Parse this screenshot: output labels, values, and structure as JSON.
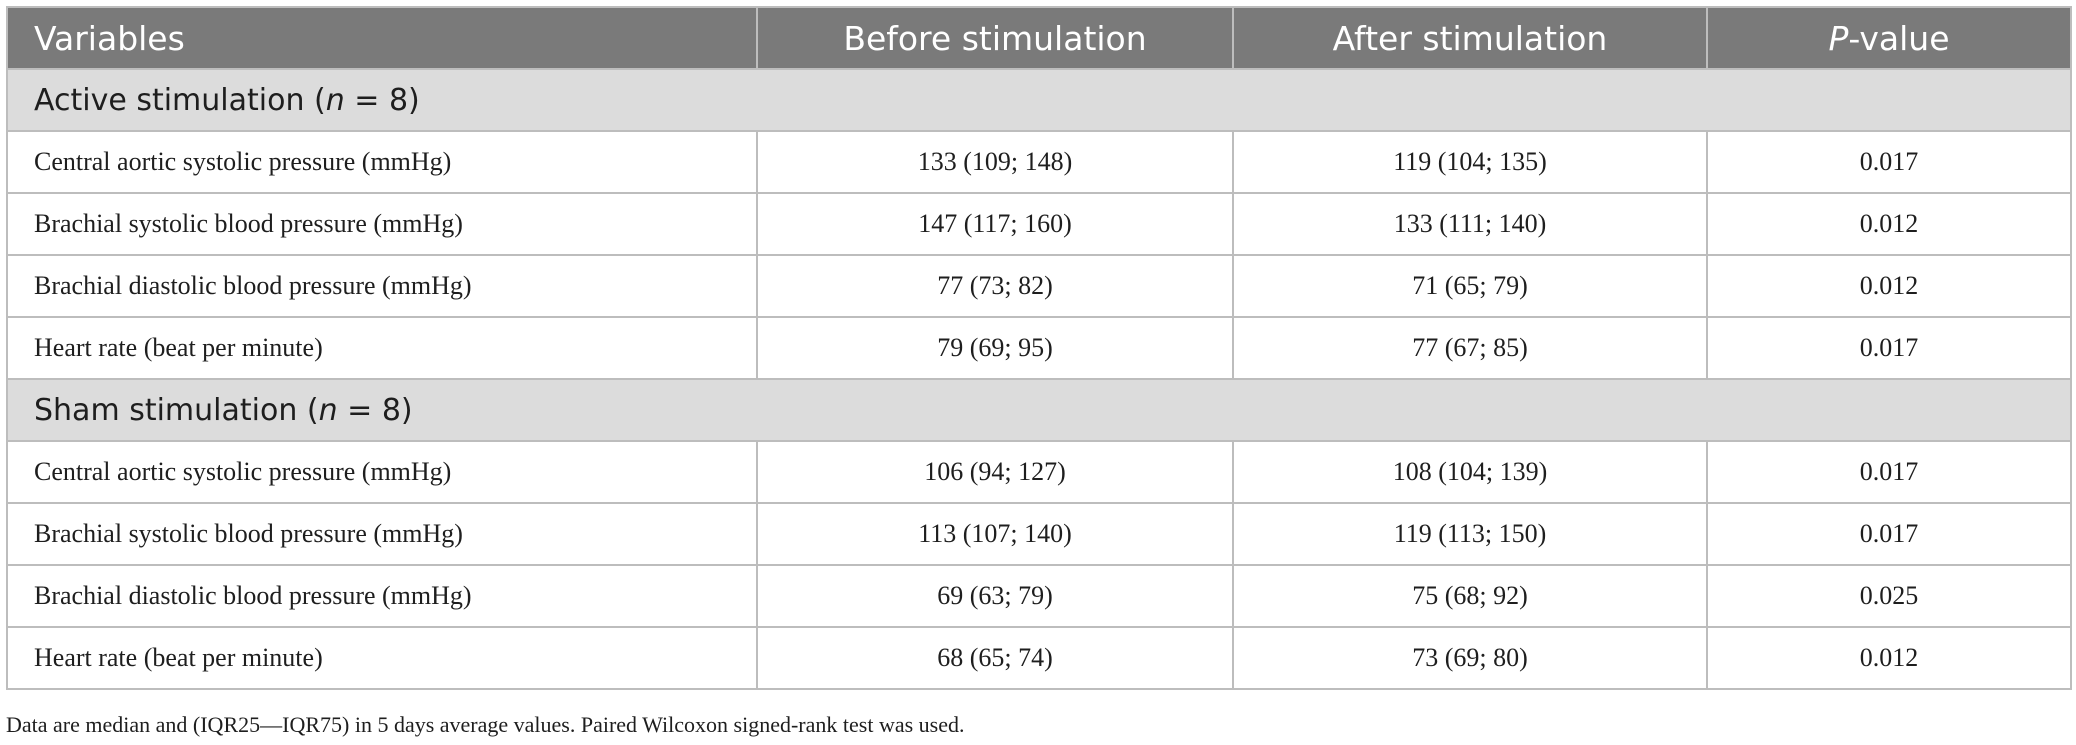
{
  "table": {
    "headers": {
      "variables": "Variables",
      "before": "Before stimulation",
      "after": "After stimulation",
      "p_italic": "P",
      "p_rest": "-value"
    },
    "groups": [
      {
        "label_prefix": "Active stimulation (",
        "label_n": "n",
        "label_suffix": " = 8)",
        "rows": [
          {
            "variable": "Central aortic systolic pressure (mmHg)",
            "before": "133 (109; 148)",
            "after": "119 (104; 135)",
            "p": "0.017"
          },
          {
            "variable": "Brachial systolic blood pressure (mmHg)",
            "before": "147 (117; 160)",
            "after": "133 (111; 140)",
            "p": "0.012"
          },
          {
            "variable": "Brachial diastolic blood pressure (mmHg)",
            "before": "77 (73; 82)",
            "after": "71 (65; 79)",
            "p": "0.012"
          },
          {
            "variable": "Heart rate (beat per minute)",
            "before": "79 (69; 95)",
            "after": "77 (67; 85)",
            "p": "0.017"
          }
        ]
      },
      {
        "label_prefix": "Sham stimulation (",
        "label_n": "n",
        "label_suffix": " = 8)",
        "rows": [
          {
            "variable": "Central aortic systolic pressure (mmHg)",
            "before": "106 (94; 127)",
            "after": "108 (104; 139)",
            "p": "0.017"
          },
          {
            "variable": "Brachial systolic blood pressure (mmHg)",
            "before": "113 (107; 140)",
            "after": "119 (113; 150)",
            "p": "0.017"
          },
          {
            "variable": "Brachial diastolic blood pressure (mmHg)",
            "before": "69 (63; 79)",
            "after": "75 (68; 92)",
            "p": "0.025"
          },
          {
            "variable": "Heart rate (beat per minute)",
            "before": "68 (65; 74)",
            "after": "73 (69; 80)",
            "p": "0.012"
          }
        ]
      }
    ]
  },
  "footnote": "Data are median and (IQR25—IQR75) in 5 days average values. Paired Wilcoxon signed-rank test was used.",
  "colors": {
    "header_bg": "#7a7a7a",
    "group_bg": "#dcdcdc",
    "border": "#bdbdbd",
    "text": "#1e1e1e"
  }
}
